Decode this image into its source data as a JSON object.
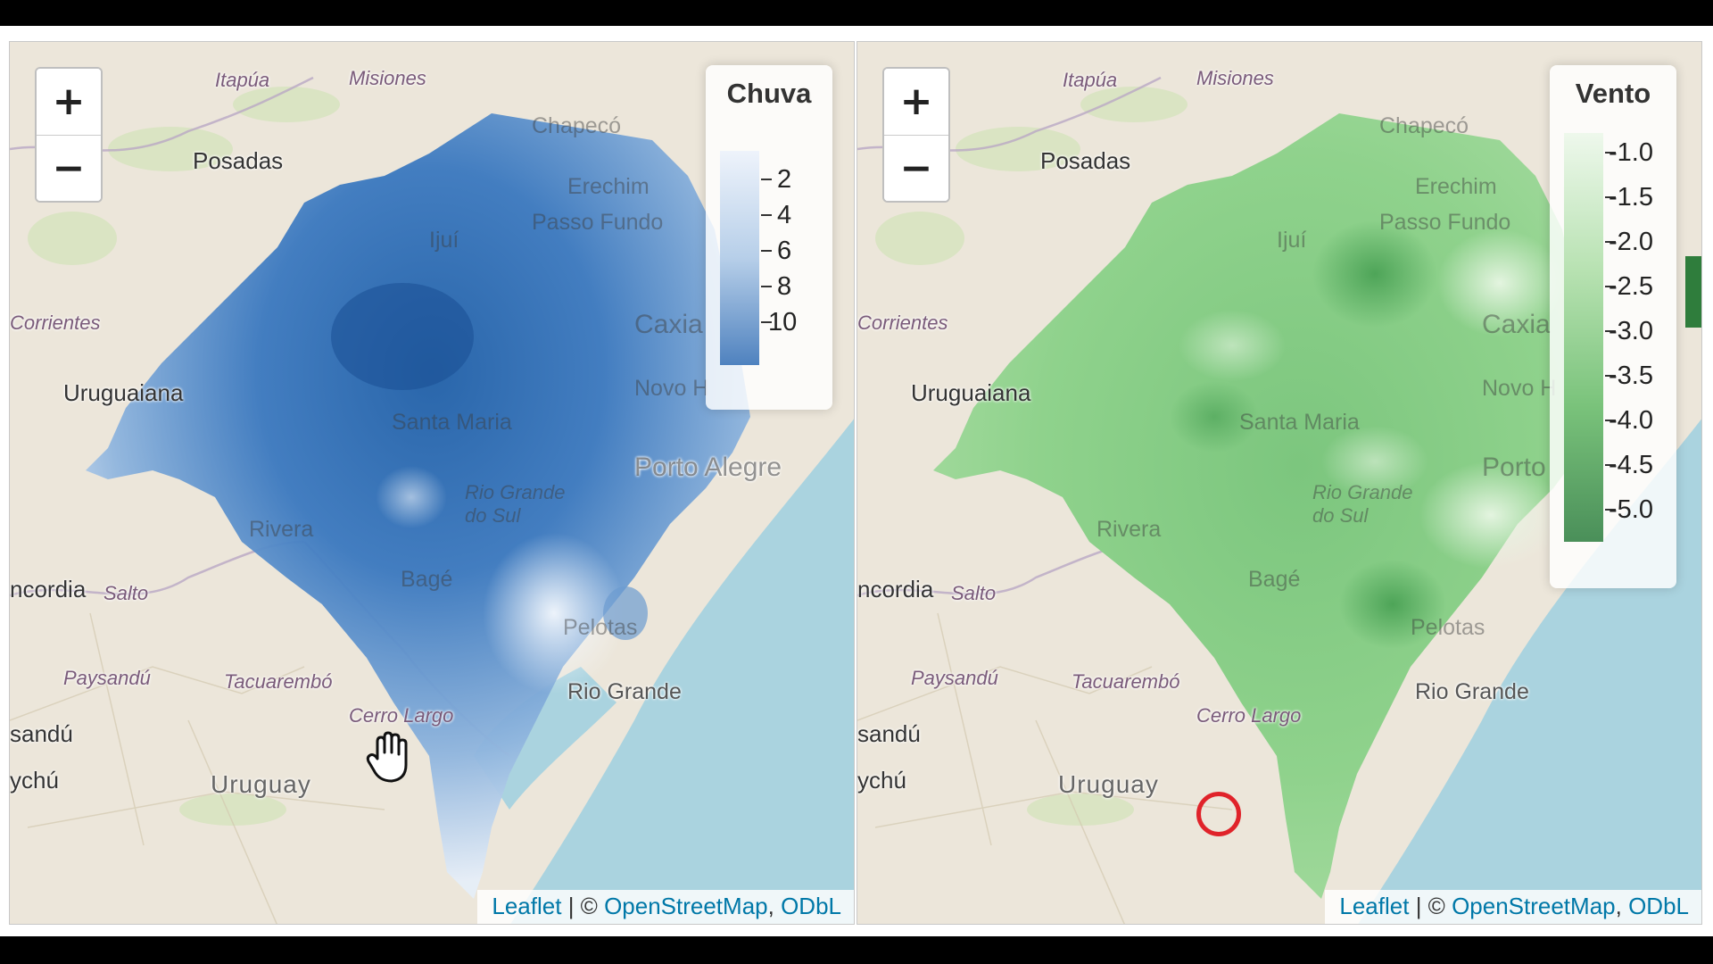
{
  "maps": {
    "left": {
      "legend": {
        "title": "Chuva",
        "ticks": [
          "2",
          "4",
          "6",
          "8",
          "10"
        ],
        "color_low": "#eef3fb",
        "color_high": "#2a67b0"
      },
      "attribution": {
        "leaflet": "Leaflet",
        "separator": " | © ",
        "osm": "OpenStreetMap",
        "comma": ", ",
        "odbl": "ODbL"
      }
    },
    "right": {
      "legend": {
        "title": "Vento",
        "ticks": [
          "-1.0",
          "-1.5",
          "-2.0",
          "-2.5",
          "-3.0",
          "-3.5",
          "-4.0",
          "-4.5",
          "-5.0"
        ],
        "color_low": "#eaf6e8",
        "color_high": "#3b9a4d"
      },
      "attribution": {
        "leaflet": "Leaflet",
        "separator": " | © ",
        "osm": "OpenStreetMap",
        "comma": ", ",
        "odbl": "ODbL"
      }
    }
  },
  "zoom": {
    "in": "+",
    "out": "−"
  },
  "places": {
    "itapua": "Itapúa",
    "misiones": "Misiones",
    "posadas": "Posadas",
    "chapeco": "Chapecó",
    "erechim": "Erechim",
    "passo_fundo": "Passo Fundo",
    "ijui": "Ijuí",
    "corrientes": "Corrientes",
    "uruguaiana": "Uruguaiana",
    "caxias": "Caxia",
    "novo": "Novo H",
    "santa_maria": "Santa Maria",
    "porto_alegre": "Porto Alegre",
    "porto": "Porto",
    "rio_grande_do_sul": "Rio Grande do Sul",
    "rivera": "Rivera",
    "concordia": "ncordia",
    "salto": "Salto",
    "bage": "Bagé",
    "pelotas": "Pelotas",
    "paysandu": "Paysandú",
    "tacuarembo": "Tacuarembó",
    "cerro_largo": "Cerro Largo",
    "rio_grande": "Rio Grande",
    "paysandu_short": "sandú",
    "uruguay": "Uruguay",
    "guaychu": "ychú"
  },
  "icons": {
    "pan_cursor": "hand-grab-icon",
    "marker": "circle-marker-icon"
  }
}
